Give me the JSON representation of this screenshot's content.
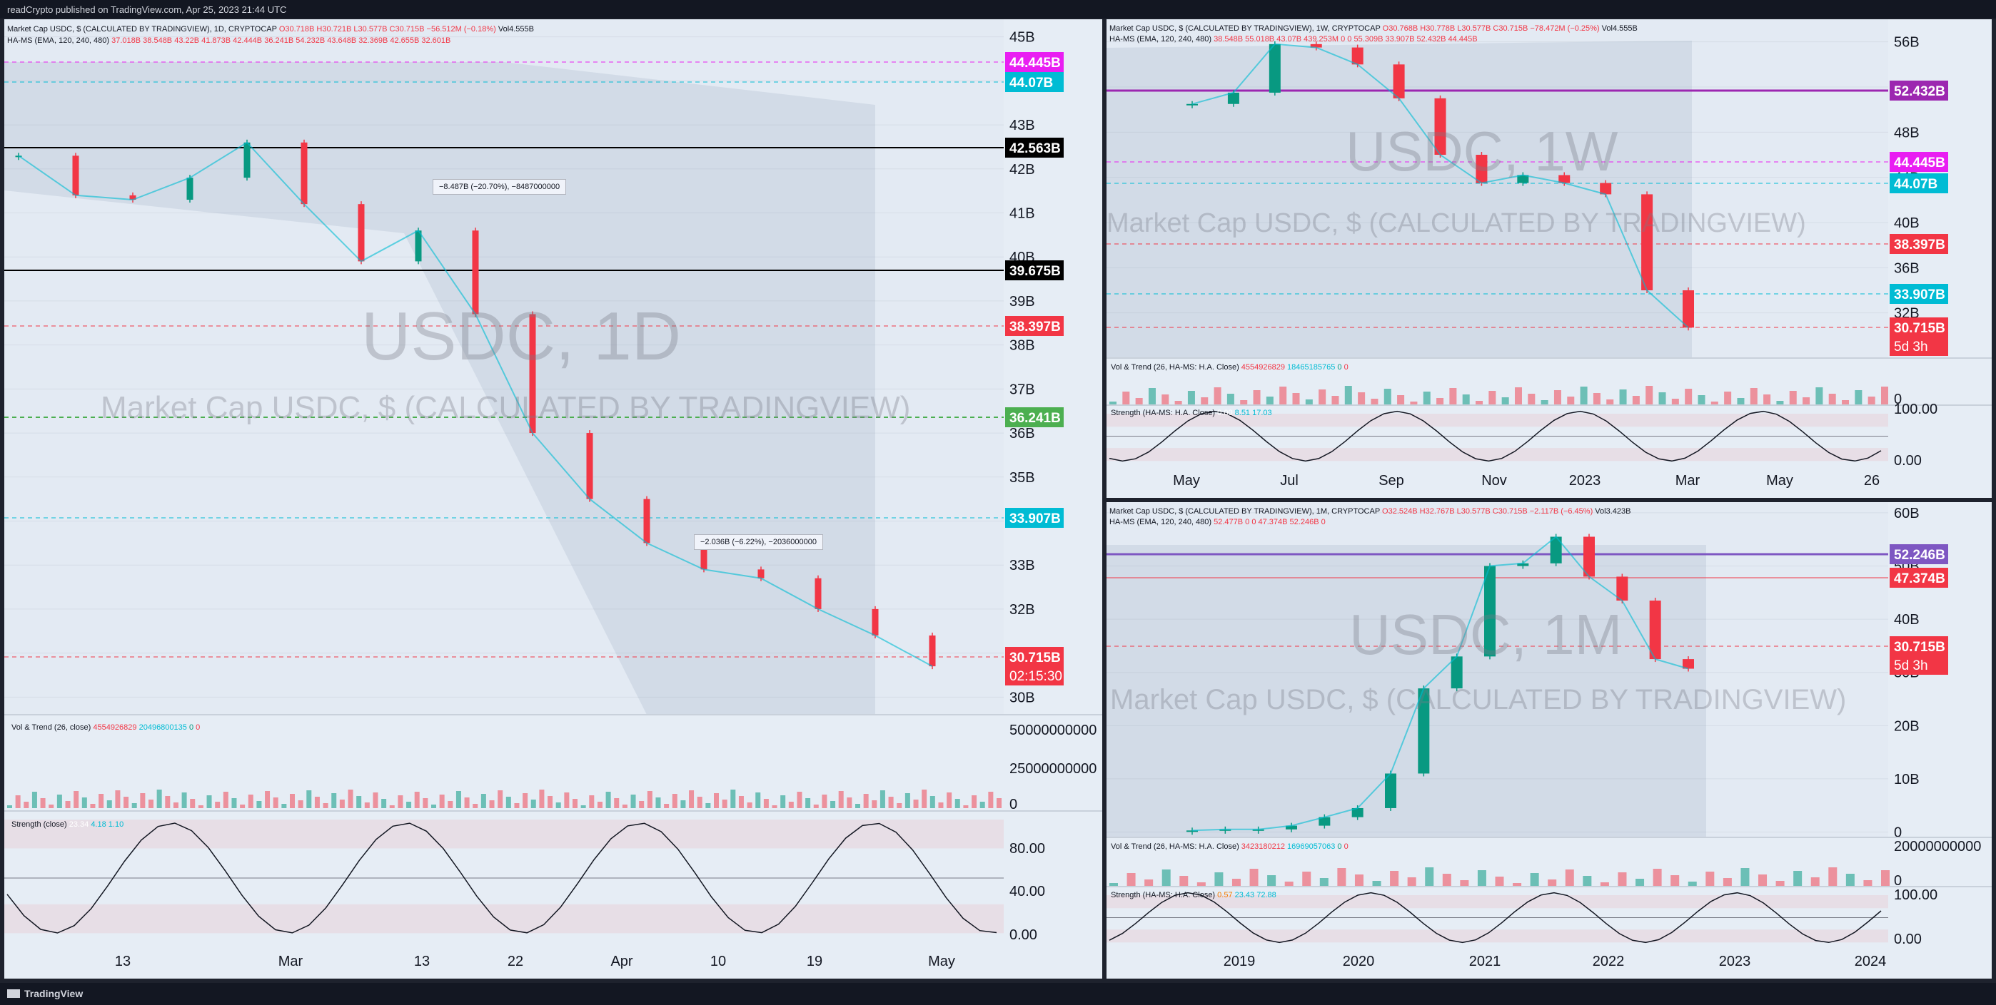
{
  "header": {
    "publisher": "readCrypto published on TradingView.com, Apr 25, 2023 21:44 UTC"
  },
  "footer": {
    "brand": "TradingView",
    "logo_icon": "tradingview-logo-icon"
  },
  "colors": {
    "up": "#089981",
    "down": "#f23645",
    "bg_pane": "#e6edf5",
    "frame": "#1e222d",
    "magenta": "#ff00ff",
    "cyan": "#00bcd4",
    "green": "#4caf50",
    "purple": "#9c27b0"
  },
  "panes": {
    "daily": {
      "legend_main": "Market Cap USDC, $ (CALCULATED BY TRADINGVIEW), 1D, CRYPTOCAP",
      "ohlc": "O30.718B H30.721B L30.577B C30.715B −56.512M (−0.18%)",
      "vol": "Vol4.555B",
      "legend_hams": "HA-MS (EMA, 120, 240, 480)",
      "hams_values": "37.018B 38.548B 43.22B 41.873B 42.444B 36.241B 54.232B 43.648B 32.369B 42.655B 32.601B",
      "watermark_big": "USDC, 1D",
      "watermark_small": "Market Cap USDC, $ (CALCULATED BY TRADINGVIEW)",
      "y_ticks": [
        "45B",
        "44B",
        "43B",
        "42B",
        "41B",
        "40B",
        "39B",
        "38B",
        "37B",
        "36B",
        "35B",
        "34B",
        "33B",
        "32B",
        "31B",
        "30B"
      ],
      "x_ticks": [
        "13",
        "Mar",
        "13",
        "22",
        "Apr",
        "10",
        "19",
        "May"
      ],
      "badges": [
        {
          "text": "44.445B",
          "color": "#e91ef2"
        },
        {
          "text": "44.07B",
          "color": "#00bcd4"
        },
        {
          "text": "42.563B",
          "color": "#000000"
        },
        {
          "text": "39.675B",
          "color": "#000000"
        },
        {
          "text": "38.397B",
          "color": "#f23645"
        },
        {
          "text": "36.241B",
          "color": "#4caf50"
        },
        {
          "text": "33.907B",
          "color": "#00bcd4"
        },
        {
          "text": "30.715B",
          "color": "#f23645"
        }
      ],
      "countdown": "02:15:30",
      "measure_1": "−8.487B (−20.70%), −8487000000",
      "measure_2": "−2.036B (−6.22%), −2036000000",
      "vol_trend": {
        "label": "Vol & Trend (26, close)",
        "v1": "4554926829",
        "v2": "20496800135",
        "v3": "0",
        "v4": "0",
        "ticks": [
          "50000000000",
          "25000000000",
          "0"
        ]
      },
      "strength": {
        "label": "Strength (close)",
        "v1": "23.34",
        "v2": "4.18",
        "v3": "1.10",
        "ticks": [
          "80.00",
          "40.00",
          "0.00"
        ]
      },
      "chart_data": {
        "type": "line",
        "title": "Market Cap USDC, $ (CALCULATED BY TRADINGVIEW), 1D",
        "x": [
          "Feb 6",
          "Feb 13",
          "Feb 20",
          "Mar 1",
          "Mar 6",
          "Mar 10",
          "Mar 11",
          "Mar 13",
          "Mar 16",
          "Mar 22",
          "Mar 28",
          "Apr 1",
          "Apr 5",
          "Apr 10",
          "Apr 15",
          "Apr 19",
          "Apr 25"
        ],
        "y": [
          42.3,
          41.4,
          41.3,
          41.8,
          42.6,
          41.2,
          39.9,
          40.6,
          38.7,
          36.0,
          34.5,
          33.5,
          32.9,
          32.7,
          32.0,
          31.4,
          30.7
        ],
        "ylabel": "",
        "ylim": [
          29.6,
          45.4
        ]
      }
    },
    "weekly": {
      "legend_main": "Market Cap USDC, $ (CALCULATED BY TRADINGVIEW), 1W, CRYPTOCAP",
      "ohlc": "O30.768B H30.778B L30.577B C30.715B −78.472M (−0.25%)",
      "vol": "Vol4.555B",
      "legend_hams": "HA-MS (EMA, 120, 240, 480)",
      "hams_values": "38.548B 55.018B 43.07B 439.253M 0 0 55.309B 33.907B 52.432B 44.445B",
      "watermark_big": "USDC, 1W",
      "watermark_small": "Market Cap USDC, $ (CALCULATED BY TRADINGVIEW)",
      "y_ticks": [
        "56B",
        "52B",
        "48B",
        "44B",
        "40B",
        "36B",
        "32B"
      ],
      "x_ticks": [
        "May",
        "Jul",
        "Sep",
        "Nov",
        "2023",
        "Mar",
        "May",
        "26"
      ],
      "badges": [
        {
          "text": "52.432B",
          "color": "#9c27b0"
        },
        {
          "text": "44.445B",
          "color": "#e91ef2"
        },
        {
          "text": "44.07B",
          "color": "#00bcd4"
        },
        {
          "text": "38.397B",
          "color": "#f23645"
        },
        {
          "text": "33.907B",
          "color": "#00bcd4"
        },
        {
          "text": "30.715B",
          "color": "#f23645"
        }
      ],
      "countdown": "5d 3h",
      "vol_trend": {
        "label": "Vol & Trend (26, HA-MS: H.A. Close)",
        "v1": "4554926829",
        "v2": "18465185765",
        "v3": "0",
        "v4": "0",
        "ticks": [
          "0"
        ]
      },
      "strength": {
        "label": "Strength (HA-MS: H.A. Close)",
        "v1": "0.00",
        "v2": "8.51",
        "v3": "17.03",
        "ticks": [
          "100.00",
          "0.00"
        ]
      },
      "chart_data": {
        "type": "line",
        "title": "Market Cap USDC, $ (CALCULATED BY TRADINGVIEW), 1W",
        "x": [
          "2022-04",
          "2022-05",
          "2022-06",
          "2022-07",
          "2022-08",
          "2022-09",
          "2022-10",
          "2022-11",
          "2022-12",
          "2023-01",
          "2023-02",
          "2023-03",
          "2023-04"
        ],
        "y": [
          50.5,
          51.5,
          55.8,
          55.5,
          54.0,
          51.0,
          46.0,
          43.5,
          44.2,
          43.5,
          42.5,
          34.0,
          30.7
        ],
        "ylabel": "",
        "ylim": [
          28,
          58
        ]
      }
    },
    "monthly": {
      "legend_main": "Market Cap USDC, $ (CALCULATED BY TRADINGVIEW), 1M, CRYPTOCAP",
      "ohlc": "O32.524B H32.767B L30.577B C30.715B −2.117B (−6.45%)",
      "vol": "Vol3.423B",
      "legend_hams": "HA-MS (EMA, 120, 240, 480)",
      "hams_values": "52.477B 0 0 47.374B 52.246B 0",
      "watermark_big": "USDC, 1M",
      "watermark_small": "Market Cap USDC, $ (CALCULATED BY TRADINGVIEW)",
      "y_ticks": [
        "60B",
        "50B",
        "40B",
        "30B",
        "20B",
        "10B",
        "0"
      ],
      "x_ticks": [
        "2019",
        "2020",
        "2021",
        "2022",
        "2023",
        "2024"
      ],
      "badges": [
        {
          "text": "52.246B",
          "color": "#7e57c2"
        },
        {
          "text": "47.374B",
          "color": "#f23645"
        },
        {
          "text": "30.715B",
          "color": "#f23645"
        }
      ],
      "countdown": "5d 3h",
      "vol_trend": {
        "label": "Vol & Trend (26, HA-MS: H.A. Close)",
        "v1": "3423180212",
        "v2": "16969057063",
        "v3": "0",
        "v4": "0",
        "ticks": [
          "20000000000",
          "0"
        ]
      },
      "strength": {
        "label": "Strength (HA-MS: H.A. Close)",
        "v1": "0.57",
        "v2": "23.43",
        "v3": "72.88",
        "ticks": [
          "100.00",
          "0.00"
        ]
      },
      "chart_data": {
        "type": "line",
        "title": "Market Cap USDC, $ (CALCULATED BY TRADINGVIEW), 1M",
        "x": [
          "2019-01",
          "2019-07",
          "2020-01",
          "2020-07",
          "2020-10",
          "2021-01",
          "2021-04",
          "2021-07",
          "2021-10",
          "2022-01",
          "2022-04",
          "2022-07",
          "2022-10",
          "2023-01",
          "2023-03",
          "2023-04"
        ],
        "y": [
          0.3,
          0.5,
          0.5,
          1.2,
          2.8,
          4.5,
          11.0,
          27.0,
          33.0,
          50.0,
          50.5,
          55.5,
          48.0,
          43.5,
          32.5,
          30.7
        ],
        "ylabel": "",
        "ylim": [
          -1,
          62
        ]
      }
    }
  }
}
